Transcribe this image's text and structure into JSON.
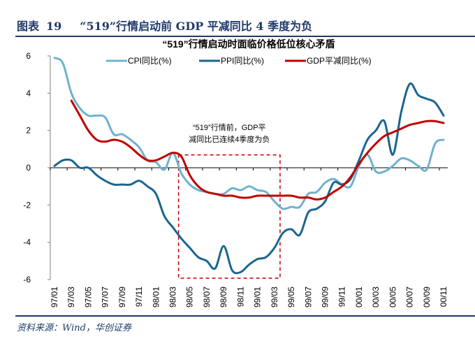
{
  "figure": {
    "label": "图表",
    "number": "19",
    "title": "“519”行情启动前 GDP 平减同比 4 季度为负",
    "source": "资料来源：Wind，华创证券"
  },
  "chart_data": {
    "type": "line",
    "title": "“519”行情启动时面临价格低位核心矛盾",
    "xlabel": "",
    "ylabel": "",
    "ylim": [
      -6,
      6
    ],
    "yticks": [
      -6,
      -4,
      -2,
      0,
      2,
      4,
      6
    ],
    "grid": false,
    "legend_position": "top",
    "x": [
      "97/01",
      "97/02",
      "97/03",
      "97/04",
      "97/05",
      "97/06",
      "97/07",
      "97/08",
      "97/09",
      "97/10",
      "97/11",
      "97/12",
      "98/01",
      "98/02",
      "98/03",
      "98/04",
      "98/05",
      "98/06",
      "98/07",
      "98/08",
      "98/09",
      "98/10",
      "98/11",
      "98/12",
      "99/01",
      "99/02",
      "99/03",
      "99/04",
      "99/05",
      "99/06",
      "99/07",
      "99/08",
      "99/09",
      "99/10",
      "99/11",
      "99/12",
      "00/01",
      "00/02",
      "00/03",
      "00/04",
      "00/05",
      "00/06",
      "00/07",
      "00/08",
      "00/09",
      "00/10",
      "00/11"
    ],
    "xtick_labels": [
      "97/01",
      "97/03",
      "97/05",
      "97/07",
      "97/09",
      "97/11",
      "98/01",
      "98/03",
      "98/05",
      "98/07",
      "98/09",
      "98/11",
      "99/01",
      "99/03",
      "99/05",
      "99/07",
      "99/09",
      "99/11",
      "00/01",
      "00/03",
      "00/05",
      "00/07",
      "00/09",
      "00/11"
    ],
    "series": [
      {
        "name": "CPI同比(%)",
        "color": "#6fb2cf",
        "values": [
          5.9,
          5.6,
          4.0,
          3.2,
          2.8,
          2.8,
          2.7,
          1.8,
          1.8,
          1.5,
          1.1,
          0.4,
          0.3,
          -0.1,
          0.8,
          -0.3,
          -0.9,
          -1.2,
          -1.3,
          -1.4,
          -1.4,
          -1.1,
          -1.2,
          -1.0,
          -1.2,
          -1.3,
          -1.8,
          -2.2,
          -2.1,
          -2.1,
          -1.4,
          -1.3,
          -0.8,
          -0.6,
          -0.9,
          -1.0,
          0.1,
          0.7,
          -0.2,
          -0.2,
          0.1,
          0.5,
          0.4,
          0.1,
          -0.1,
          1.3,
          1.5
        ]
      },
      {
        "name": "PPI同比(%)",
        "color": "#1a6690",
        "values": [
          0.1,
          0.4,
          0.4,
          0.0,
          0.0,
          -0.4,
          -0.7,
          -0.9,
          -0.9,
          -0.9,
          -0.7,
          -1.0,
          -1.4,
          -2.6,
          -3.2,
          -3.8,
          -4.3,
          -4.8,
          -5.0,
          -5.4,
          -4.2,
          -5.5,
          -5.6,
          -5.2,
          -4.9,
          -4.8,
          -4.3,
          -3.5,
          -3.3,
          -3.6,
          -2.4,
          -2.2,
          -1.8,
          -0.8,
          -0.9,
          -0.6,
          0.4,
          1.5,
          2.0,
          2.5,
          0.7,
          3.0,
          4.5,
          3.9,
          3.7,
          3.5,
          2.8
        ]
      },
      {
        "name": "GDP平减同比(%)",
        "color": "#c00000",
        "values": [
          null,
          null,
          3.6,
          2.8,
          2.0,
          1.5,
          1.4,
          1.5,
          1.4,
          1.1,
          0.7,
          0.4,
          0.4,
          0.6,
          0.8,
          0.6,
          -0.4,
          -1.0,
          -1.3,
          -1.4,
          -1.5,
          -1.5,
          -1.6,
          -1.6,
          -1.5,
          -1.5,
          -1.5,
          -1.5,
          -1.5,
          -1.6,
          -1.6,
          -1.7,
          -1.6,
          -1.3,
          -1.0,
          -0.5,
          0.2,
          0.8,
          1.3,
          1.7,
          1.9,
          2.1,
          2.3,
          2.4,
          2.5,
          2.5,
          2.4
        ]
      }
    ],
    "annotations": [
      {
        "text_lines": [
          "“519”行情前，GDP平",
          "减同比已连续4季度为负"
        ],
        "box_x_range": [
          "98/04",
          "99/04"
        ],
        "box_y_range": [
          -6,
          0.8
        ],
        "box_style": "dashed",
        "box_color": "#c00000"
      }
    ]
  }
}
